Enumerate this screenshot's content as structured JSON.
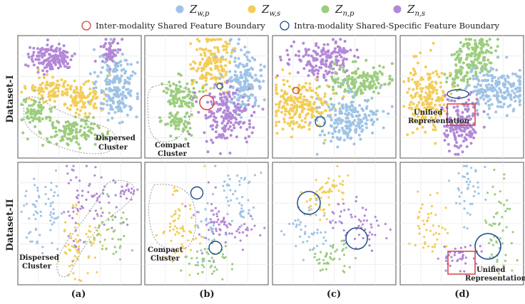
{
  "legend": {
    "entries": [
      {
        "base": "Z",
        "sub": "w,p",
        "color": "#9fc3e6"
      },
      {
        "base": "Z",
        "sub": "w,s",
        "color": "#f3cd58"
      },
      {
        "base": "Z",
        "sub": "n,p",
        "color": "#9ccd7e"
      },
      {
        "base": "Z",
        "sub": "n,s",
        "color": "#b388d8"
      }
    ],
    "inter_label": "Inter-modality Shared Feature Boundary",
    "intra_label": "Intra-modality Shared-Specific Feature Boundary",
    "inter_color": "#d94040",
    "intra_color": "#1f4e8c"
  },
  "rows": [
    "Dataset-I",
    "Dataset-II"
  ],
  "columns": [
    "(a)",
    "(b)",
    "(c)",
    "(d)"
  ],
  "annotations": {
    "dispersed_1": "Dispersed",
    "cluster_1": "Cluster",
    "compact_1": "Compact",
    "cluster_2": "Cluster",
    "unified_1": "Unified",
    "representation_1": "Representation",
    "dispersed_2": "Dispersed",
    "cluster_3": "Cluster",
    "compact_2": "Compact",
    "cluster_4": "Cluster",
    "unified_2": "Unified",
    "representation_2": "Representation"
  },
  "chart_data": {
    "type": "scatter",
    "description_units": "t-SNE embedding, unitless",
    "series": [
      "Z_w,p",
      "Z_w,s",
      "Z_n,p",
      "Z_n,s"
    ],
    "panels": [
      {
        "row": "Dataset-I",
        "col": "(a)",
        "clusters": [
          {
            "s": 3,
            "cx": 0.27,
            "cy": 0.18,
            "sx": 0.09,
            "sy": 0.055,
            "n": 150
          },
          {
            "s": 3,
            "cx": 0.75,
            "cy": 0.14,
            "sx": 0.035,
            "sy": 0.06,
            "n": 60
          },
          {
            "s": 1,
            "cx": 0.28,
            "cy": 0.45,
            "sx": 0.11,
            "sy": 0.05,
            "n": 90
          },
          {
            "s": 1,
            "cx": 0.52,
            "cy": 0.5,
            "sx": 0.1,
            "sy": 0.07,
            "n": 100
          },
          {
            "s": 0,
            "cx": 0.8,
            "cy": 0.42,
            "sx": 0.08,
            "sy": 0.12,
            "n": 200
          },
          {
            "s": 2,
            "cx": 0.15,
            "cy": 0.62,
            "sx": 0.07,
            "sy": 0.06,
            "n": 70
          },
          {
            "s": 2,
            "cx": 0.42,
            "cy": 0.78,
            "sx": 0.13,
            "sy": 0.06,
            "n": 130
          }
        ]
      },
      {
        "row": "Dataset-I",
        "col": "(b)",
        "clusters": [
          {
            "s": 1,
            "cx": 0.55,
            "cy": 0.22,
            "sx": 0.08,
            "sy": 0.12,
            "n": 160
          },
          {
            "s": 0,
            "cx": 0.8,
            "cy": 0.38,
            "sx": 0.08,
            "sy": 0.12,
            "n": 190
          },
          {
            "s": 2,
            "cx": 0.28,
            "cy": 0.48,
            "sx": 0.07,
            "sy": 0.07,
            "n": 90
          },
          {
            "s": 2,
            "cx": 0.28,
            "cy": 0.7,
            "sx": 0.06,
            "sy": 0.05,
            "n": 60
          },
          {
            "s": 3,
            "cx": 0.66,
            "cy": 0.65,
            "sx": 0.1,
            "sy": 0.12,
            "n": 180
          }
        ]
      },
      {
        "row": "Dataset-I",
        "col": "(c)",
        "clusters": [
          {
            "s": 3,
            "cx": 0.35,
            "cy": 0.2,
            "sx": 0.12,
            "sy": 0.08,
            "n": 130
          },
          {
            "s": 3,
            "cx": 0.52,
            "cy": 0.14,
            "sx": 0.05,
            "sy": 0.05,
            "n": 40
          },
          {
            "s": 2,
            "cx": 0.72,
            "cy": 0.38,
            "sx": 0.13,
            "sy": 0.07,
            "n": 160
          },
          {
            "s": 1,
            "cx": 0.22,
            "cy": 0.58,
            "sx": 0.13,
            "sy": 0.1,
            "n": 220
          },
          {
            "s": 0,
            "cx": 0.6,
            "cy": 0.68,
            "sx": 0.12,
            "sy": 0.1,
            "n": 200
          }
        ]
      },
      {
        "row": "Dataset-I",
        "col": "(d)",
        "clusters": [
          {
            "s": 2,
            "cx": 0.6,
            "cy": 0.17,
            "sx": 0.08,
            "sy": 0.1,
            "n": 150
          },
          {
            "s": 2,
            "cx": 0.47,
            "cy": 0.34,
            "sx": 0.05,
            "sy": 0.05,
            "n": 40
          },
          {
            "s": 0,
            "cx": 0.78,
            "cy": 0.45,
            "sx": 0.13,
            "sy": 0.09,
            "n": 200
          },
          {
            "s": 1,
            "cx": 0.22,
            "cy": 0.5,
            "sx": 0.08,
            "sy": 0.14,
            "n": 180
          },
          {
            "s": 3,
            "cx": 0.5,
            "cy": 0.7,
            "sx": 0.08,
            "sy": 0.12,
            "n": 150
          }
        ]
      },
      {
        "row": "Dataset-II",
        "col": "(a)",
        "clusters": [
          {
            "s": 0,
            "cx": 0.12,
            "cy": 0.45,
            "sx": 0.06,
            "sy": 0.15,
            "n": 35
          },
          {
            "s": 0,
            "cx": 0.28,
            "cy": 0.48,
            "sx": 0.04,
            "sy": 0.18,
            "n": 30
          },
          {
            "s": 3,
            "cx": 0.47,
            "cy": 0.35,
            "sx": 0.05,
            "sy": 0.18,
            "n": 45
          },
          {
            "s": 3,
            "cx": 0.7,
            "cy": 0.3,
            "sx": 0.08,
            "sy": 0.1,
            "n": 30
          },
          {
            "s": 3,
            "cx": 0.88,
            "cy": 0.25,
            "sx": 0.05,
            "sy": 0.06,
            "n": 20
          },
          {
            "s": 1,
            "cx": 0.45,
            "cy": 0.7,
            "sx": 0.05,
            "sy": 0.15,
            "n": 40
          },
          {
            "s": 1,
            "cx": 0.6,
            "cy": 0.62,
            "sx": 0.05,
            "sy": 0.1,
            "n": 20
          },
          {
            "s": 2,
            "cx": 0.75,
            "cy": 0.55,
            "sx": 0.1,
            "sy": 0.12,
            "n": 40
          }
        ]
      },
      {
        "row": "Dataset-II",
        "col": "(b)",
        "clusters": [
          {
            "s": 1,
            "cx": 0.28,
            "cy": 0.52,
            "sx": 0.08,
            "sy": 0.17,
            "n": 60
          },
          {
            "s": 0,
            "cx": 0.5,
            "cy": 0.55,
            "sx": 0.04,
            "sy": 0.14,
            "n": 25
          },
          {
            "s": 0,
            "cx": 0.75,
            "cy": 0.2,
            "sx": 0.08,
            "sy": 0.08,
            "n": 30
          },
          {
            "s": 0,
            "cx": 0.82,
            "cy": 0.4,
            "sx": 0.05,
            "sy": 0.05,
            "n": 20
          },
          {
            "s": 3,
            "cx": 0.55,
            "cy": 0.5,
            "sx": 0.08,
            "sy": 0.12,
            "n": 45
          },
          {
            "s": 3,
            "cx": 0.78,
            "cy": 0.55,
            "sx": 0.08,
            "sy": 0.06,
            "n": 25
          },
          {
            "s": 2,
            "cx": 0.52,
            "cy": 0.8,
            "sx": 0.1,
            "sy": 0.07,
            "n": 40
          }
        ]
      },
      {
        "row": "Dataset-II",
        "col": "(c)",
        "clusters": [
          {
            "s": 1,
            "cx": 0.45,
            "cy": 0.2,
            "sx": 0.07,
            "sy": 0.08,
            "n": 40
          },
          {
            "s": 1,
            "cx": 0.35,
            "cy": 0.35,
            "sx": 0.06,
            "sy": 0.06,
            "n": 20
          },
          {
            "s": 0,
            "cx": 0.3,
            "cy": 0.55,
            "sx": 0.1,
            "sy": 0.1,
            "n": 45
          },
          {
            "s": 3,
            "cx": 0.75,
            "cy": 0.5,
            "sx": 0.08,
            "sy": 0.1,
            "n": 40
          },
          {
            "s": 3,
            "cx": 0.55,
            "cy": 0.45,
            "sx": 0.05,
            "sy": 0.05,
            "n": 15
          },
          {
            "s": 2,
            "cx": 0.48,
            "cy": 0.78,
            "sx": 0.1,
            "sy": 0.06,
            "n": 45
          }
        ]
      },
      {
        "row": "Dataset-II",
        "col": "(d)",
        "clusters": [
          {
            "s": 0,
            "cx": 0.55,
            "cy": 0.25,
            "sx": 0.06,
            "sy": 0.15,
            "n": 40
          },
          {
            "s": 1,
            "cx": 0.25,
            "cy": 0.52,
            "sx": 0.08,
            "sy": 0.12,
            "n": 45
          },
          {
            "s": 2,
            "cx": 0.8,
            "cy": 0.55,
            "sx": 0.06,
            "sy": 0.18,
            "n": 55
          },
          {
            "s": 3,
            "cx": 0.48,
            "cy": 0.78,
            "sx": 0.08,
            "sy": 0.06,
            "n": 40
          }
        ]
      }
    ]
  }
}
